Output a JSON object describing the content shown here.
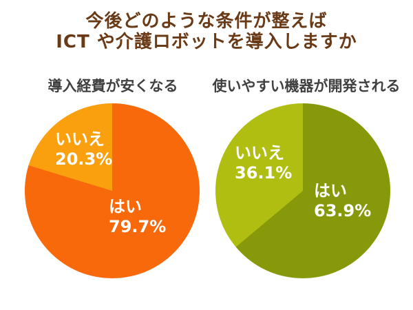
{
  "title": {
    "line1": "今後どのような条件が整えば",
    "line2": "ICT や介護ロボットを導入しますか",
    "color": "#6A3A17"
  },
  "colors": {
    "background": "#FFFFFF",
    "title_text": "#6A3A17",
    "subtitle_text": "#404040",
    "slice_label_text": "#FFFFFF"
  },
  "chart_data": [
    {
      "type": "pie",
      "title": "導入経費が安くなる",
      "labels": [
        "はい",
        "いいえ"
      ],
      "values": [
        79.7,
        20.3
      ],
      "value_labels": [
        "79.7%",
        "20.3%"
      ],
      "colors": [
        "#F8690B",
        "#FAA00F"
      ],
      "start_angle_deg": 0,
      "direction": "clockwise",
      "legend_position": "none",
      "label_style": "inside-white-bold"
    },
    {
      "type": "pie",
      "title": "使いやすい機器が開発される",
      "labels": [
        "はい",
        "いいえ"
      ],
      "values": [
        63.9,
        36.1
      ],
      "value_labels": [
        "63.9%",
        "36.1%"
      ],
      "colors": [
        "#87990B",
        "#AFBE10"
      ],
      "start_angle_deg": 0,
      "direction": "clockwise",
      "legend_position": "none",
      "label_style": "inside-white-bold"
    }
  ]
}
